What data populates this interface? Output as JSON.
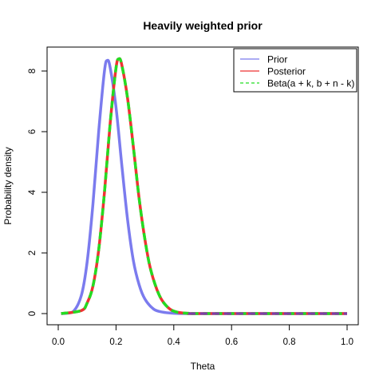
{
  "chart_data": {
    "type": "line",
    "title": "Heavily weighted prior",
    "xlabel": "Theta",
    "ylabel": "Probability density",
    "xlim": [
      0,
      1
    ],
    "ylim": [
      0,
      8.5
    ],
    "x_ticks": [
      "0.0",
      "0.2",
      "0.4",
      "0.6",
      "0.8",
      "1.0"
    ],
    "y_ticks": [
      "0",
      "2",
      "4",
      "6",
      "8"
    ],
    "grid": false,
    "legend_position": "top-right",
    "series": [
      {
        "name": "Prior",
        "color": "#7B7BEE",
        "style": "solid",
        "x": [
          0.01,
          0.05,
          0.08,
          0.1,
          0.12,
          0.14,
          0.16,
          0.17,
          0.18,
          0.2,
          0.22,
          0.24,
          0.26,
          0.28,
          0.3,
          0.33,
          0.36,
          0.4,
          0.45,
          0.5,
          1.0
        ],
        "y": [
          0,
          0.05,
          0.6,
          1.7,
          3.6,
          6.0,
          8.0,
          8.35,
          8.1,
          6.8,
          4.9,
          3.1,
          1.75,
          0.95,
          0.48,
          0.15,
          0.05,
          0.01,
          0,
          0,
          0
        ]
      },
      {
        "name": "Posterior",
        "color": "#EE3333",
        "style": "solid",
        "x": [
          0.01,
          0.08,
          0.1,
          0.12,
          0.14,
          0.16,
          0.18,
          0.2,
          0.21,
          0.22,
          0.24,
          0.26,
          0.28,
          0.3,
          0.32,
          0.35,
          0.38,
          0.41,
          0.45,
          0.5,
          1.0
        ],
        "y": [
          0,
          0.1,
          0.35,
          0.9,
          2.1,
          4.0,
          6.3,
          8.1,
          8.4,
          8.2,
          7.1,
          5.5,
          3.8,
          2.45,
          1.45,
          0.6,
          0.2,
          0.05,
          0.01,
          0,
          0
        ]
      },
      {
        "name": "Beta(a + k, b + n - k)",
        "color": "#22DD22",
        "style": "dashed",
        "x": [
          0.01,
          0.08,
          0.1,
          0.12,
          0.14,
          0.16,
          0.18,
          0.2,
          0.21,
          0.22,
          0.24,
          0.26,
          0.28,
          0.3,
          0.32,
          0.35,
          0.38,
          0.41,
          0.45,
          0.5,
          1.0
        ],
        "y": [
          0,
          0.1,
          0.35,
          0.9,
          2.1,
          4.0,
          6.3,
          8.1,
          8.4,
          8.2,
          7.1,
          5.5,
          3.8,
          2.45,
          1.45,
          0.6,
          0.2,
          0.05,
          0.01,
          0,
          0
        ]
      }
    ],
    "tail_color": "#7A3FA8"
  }
}
